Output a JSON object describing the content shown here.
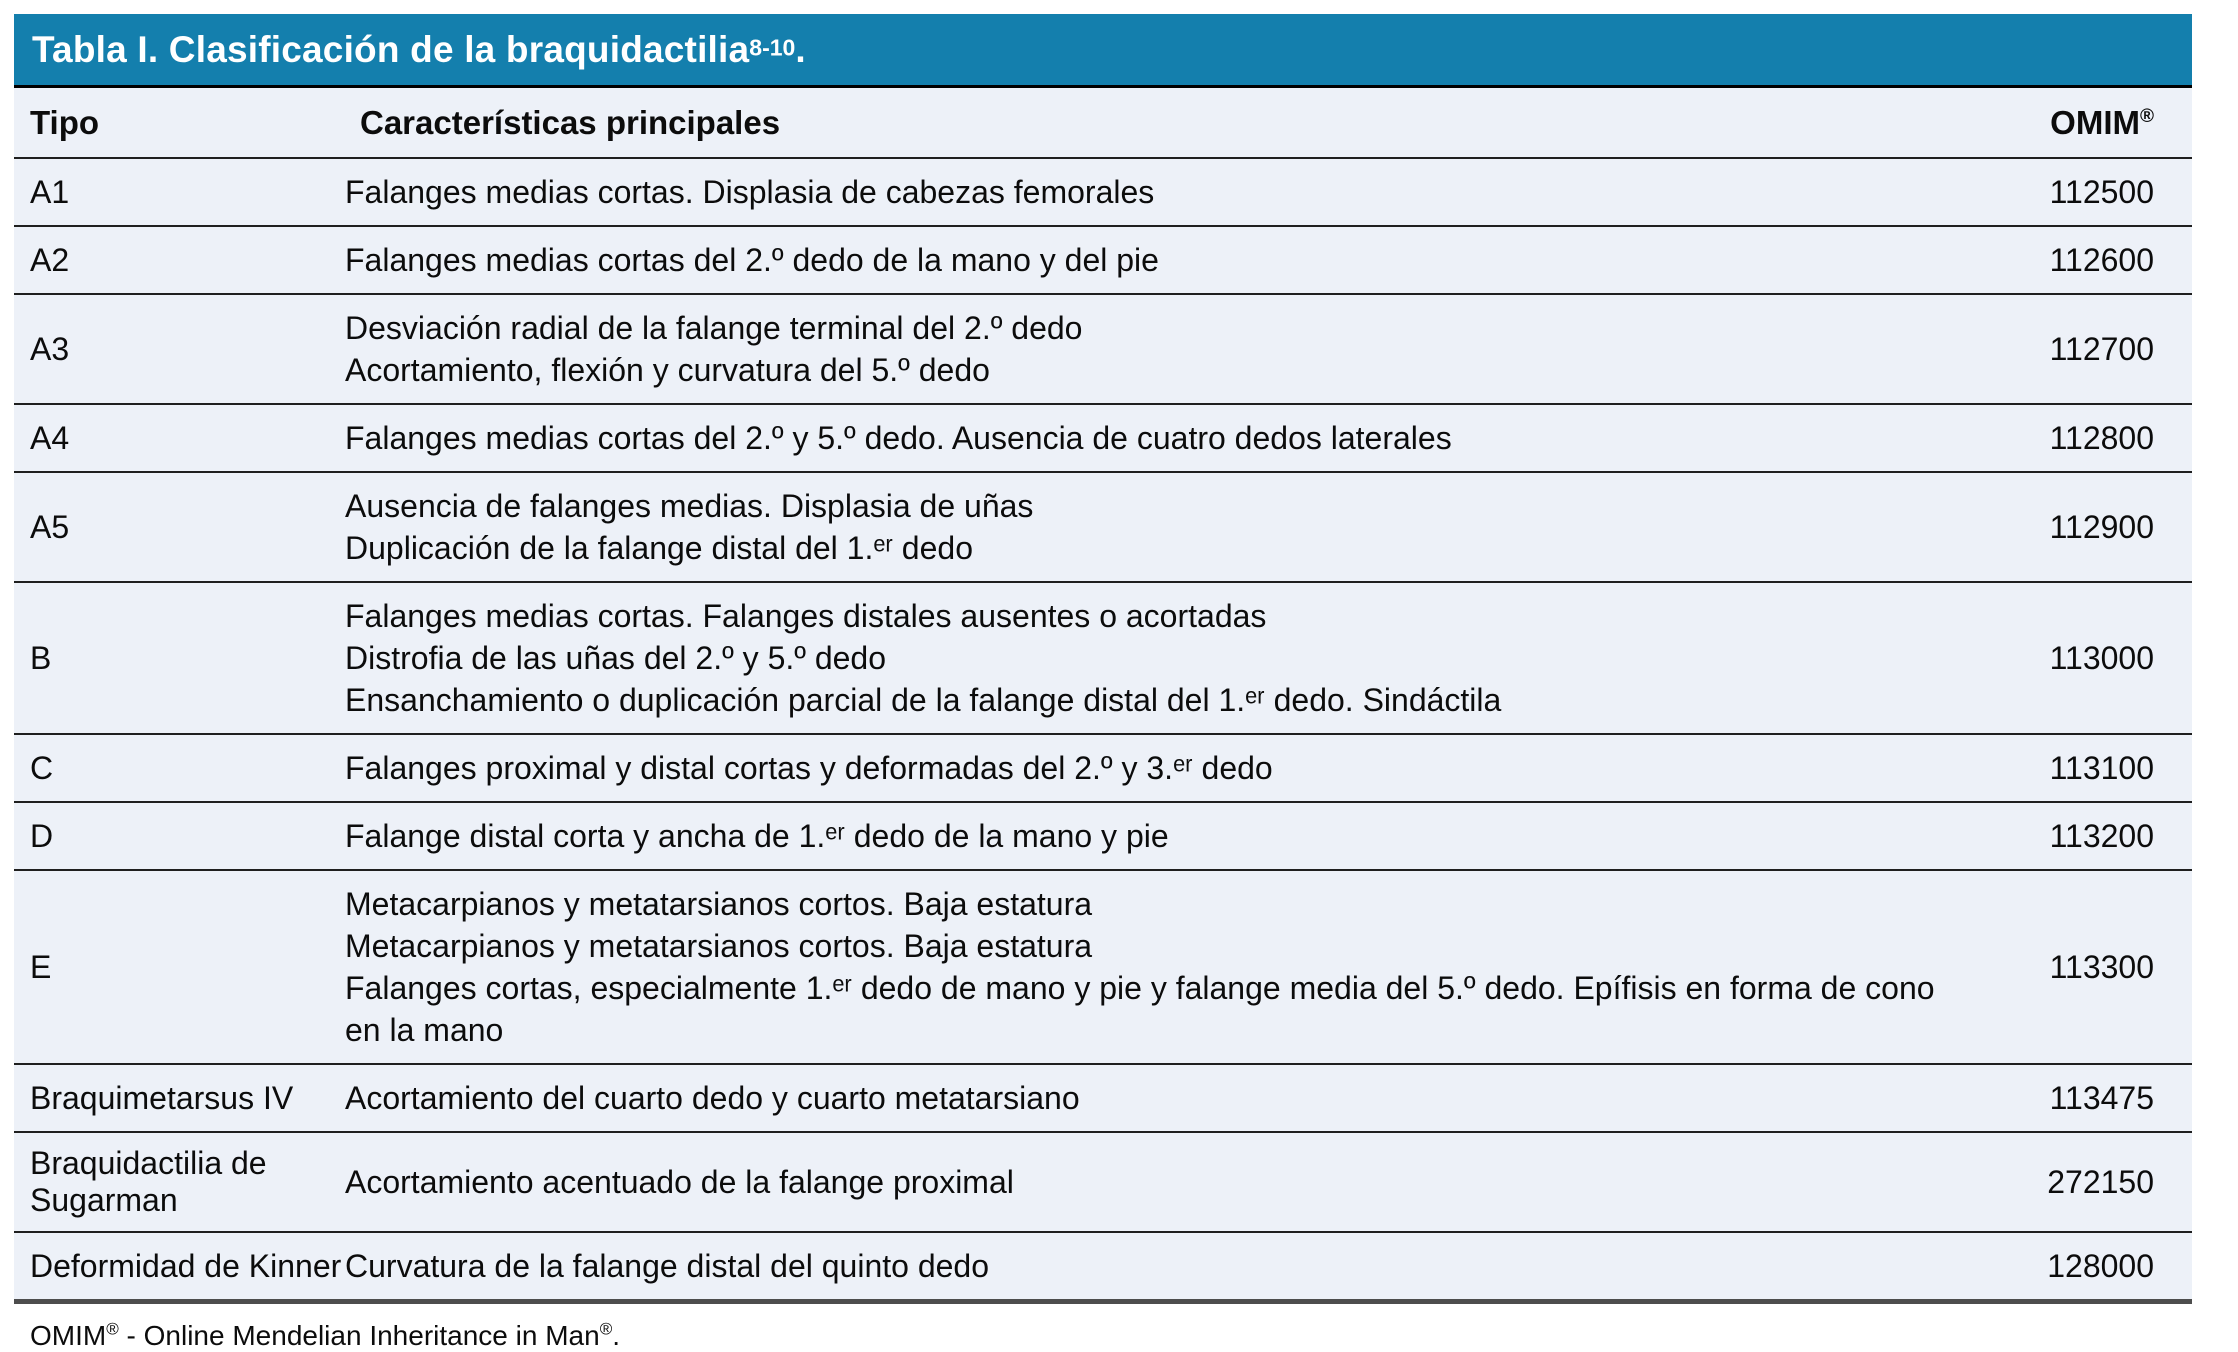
{
  "title": {
    "text": "Tabla I. Clasificación de la braquidactilia",
    "reference": "8-10",
    "suffix": "."
  },
  "colors": {
    "title_bar_bg": "#147FAD",
    "title_text": "#FFFFFF",
    "row_bg": "#EDF1F8",
    "row_separator": "#1F1F1F",
    "table_bottom_border": "#4D4D4D",
    "body_text": "#0C0C0C"
  },
  "table": {
    "columns": {
      "tipo": {
        "label": "Tipo"
      },
      "caracteristicas": {
        "label": "Características principales"
      },
      "omim": {
        "label": "OMIM",
        "label_sup": "®"
      }
    },
    "rows": [
      {
        "tipo": "A1",
        "caracteristicas": [
          "Falanges medias cortas. Displasia de cabezas femorales"
        ],
        "omim": "112500"
      },
      {
        "tipo": "A2",
        "caracteristicas": [
          "Falanges medias cortas del 2.º dedo de la mano y del pie"
        ],
        "omim": "112600"
      },
      {
        "tipo": "A3",
        "caracteristicas": [
          "Desviación radial de la falange terminal del 2.º dedo",
          "Acortamiento, flexión y curvatura del 5.º dedo"
        ],
        "omim": "112700"
      },
      {
        "tipo": "A4",
        "caracteristicas": [
          "Falanges medias cortas del 2.º y 5.º dedo. Ausencia de cuatro dedos laterales"
        ],
        "omim": "112800"
      },
      {
        "tipo": "A5",
        "caracteristicas": [
          "Ausencia de falanges medias. Displasia de uñas",
          "Duplicación de la falange distal del 1.ᵉʳ dedo"
        ],
        "omim": "112900"
      },
      {
        "tipo": "B",
        "caracteristicas": [
          "Falanges medias cortas. Falanges distales ausentes o acortadas",
          "Distrofia de las uñas del 2.º y 5.º dedo",
          "Ensanchamiento o duplicación parcial de la falange distal del 1.ᵉʳ dedo. Sindáctila"
        ],
        "omim": "113000"
      },
      {
        "tipo": "C",
        "caracteristicas": [
          "Falanges proximal y distal cortas y deformadas del 2.º y 3.ᵉʳ dedo"
        ],
        "omim": "113100"
      },
      {
        "tipo": "D",
        "caracteristicas": [
          "Falange distal corta y ancha de 1.ᵉʳ dedo de la mano y pie"
        ],
        "omim": "113200"
      },
      {
        "tipo": "E",
        "caracteristicas": [
          "Metacarpianos y metatarsianos cortos. Baja estatura",
          "Metacarpianos y metatarsianos cortos. Baja estatura",
          "Falanges cortas, especialmente 1.ᵉʳ dedo de mano y pie y falange media del 5.º dedo. Epífisis en forma de cono en la mano"
        ],
        "omim": "113300"
      },
      {
        "tipo": "Braquimetarsus IV",
        "caracteristicas": [
          "Acortamiento del cuarto dedo y cuarto metatarsiano"
        ],
        "omim": "113475"
      },
      {
        "tipo": "Braquidactilia de Sugarman",
        "caracteristicas": [
          "Acortamiento acentuado de la falange proximal"
        ],
        "omim": "272150"
      },
      {
        "tipo": "Deformidad de Kinner",
        "caracteristicas": [
          "Curvatura de la falange distal del quinto dedo"
        ],
        "omim": "128000"
      }
    ]
  },
  "footnote": {
    "omim": "OMIM",
    "reg1": "®",
    "text": " - Online Mendelian Inheritance in Man",
    "reg2": "®",
    "suffix": "."
  }
}
